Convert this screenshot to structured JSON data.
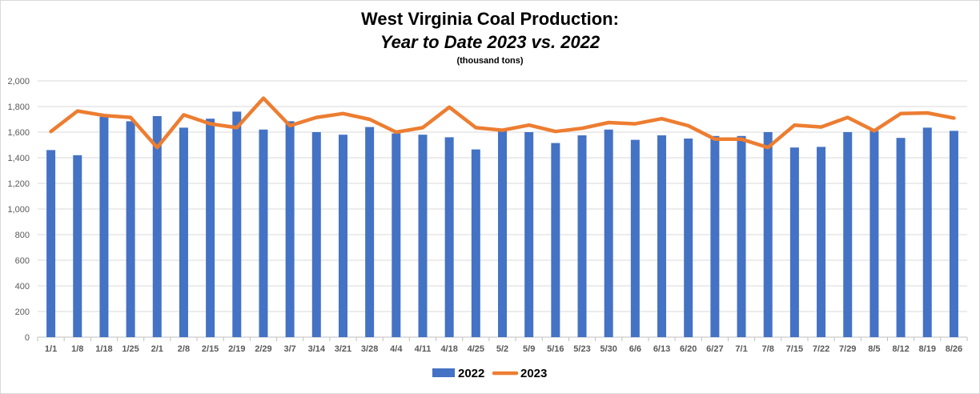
{
  "chart_data": {
    "type": "bar",
    "title": "West Virginia Coal Production:",
    "subtitle": "Year to Date 2023 vs. 2022",
    "unit_note": "(thousand tons)",
    "categories": [
      "1/1",
      "1/8",
      "1/18",
      "1/25",
      "2/1",
      "2/8",
      "2/15",
      "2/19",
      "2/29",
      "3/7",
      "3/14",
      "3/21",
      "3/28",
      "4/4",
      "4/11",
      "4/18",
      "4/25",
      "5/2",
      "5/9",
      "5/16",
      "5/23",
      "5/30",
      "6/6",
      "6/13",
      "6/20",
      "6/27",
      "7/1",
      "7/8",
      "7/15",
      "7/22",
      "7/29",
      "8/5",
      "8/12",
      "8/19",
      "8/26"
    ],
    "ylim": [
      0,
      2000
    ],
    "yticks": [
      0,
      200,
      400,
      600,
      800,
      1000,
      1200,
      1400,
      1600,
      1800,
      2000
    ],
    "ytick_labels": [
      "0",
      "200",
      "400",
      "600",
      "800",
      "1,000",
      "1,200",
      "1,400",
      "1,600",
      "1,800",
      "2,000"
    ],
    "grid": true,
    "legend_position": "bottom",
    "series": [
      {
        "name": "2022",
        "type": "bar",
        "color": "#4472C4",
        "values": [
          1460,
          1420,
          1720,
          1685,
          1725,
          1635,
          1705,
          1760,
          1620,
          1685,
          1600,
          1580,
          1640,
          1590,
          1580,
          1560,
          1465,
          1615,
          1600,
          1515,
          1575,
          1620,
          1540,
          1575,
          1550,
          1570,
          1570,
          1600,
          1480,
          1485,
          1600,
          1610,
          1555,
          1635,
          1610
        ]
      },
      {
        "name": "2023",
        "type": "line",
        "color": "#ED7D31",
        "values": [
          1605,
          1765,
          1730,
          1715,
          1480,
          1735,
          1665,
          1635,
          1865,
          1650,
          1715,
          1745,
          1700,
          1600,
          1635,
          1795,
          1635,
          1615,
          1655,
          1605,
          1630,
          1675,
          1665,
          1705,
          1650,
          1545,
          1545,
          1480,
          1655,
          1640,
          1715,
          1610,
          1745,
          1750,
          1710
        ]
      }
    ]
  }
}
